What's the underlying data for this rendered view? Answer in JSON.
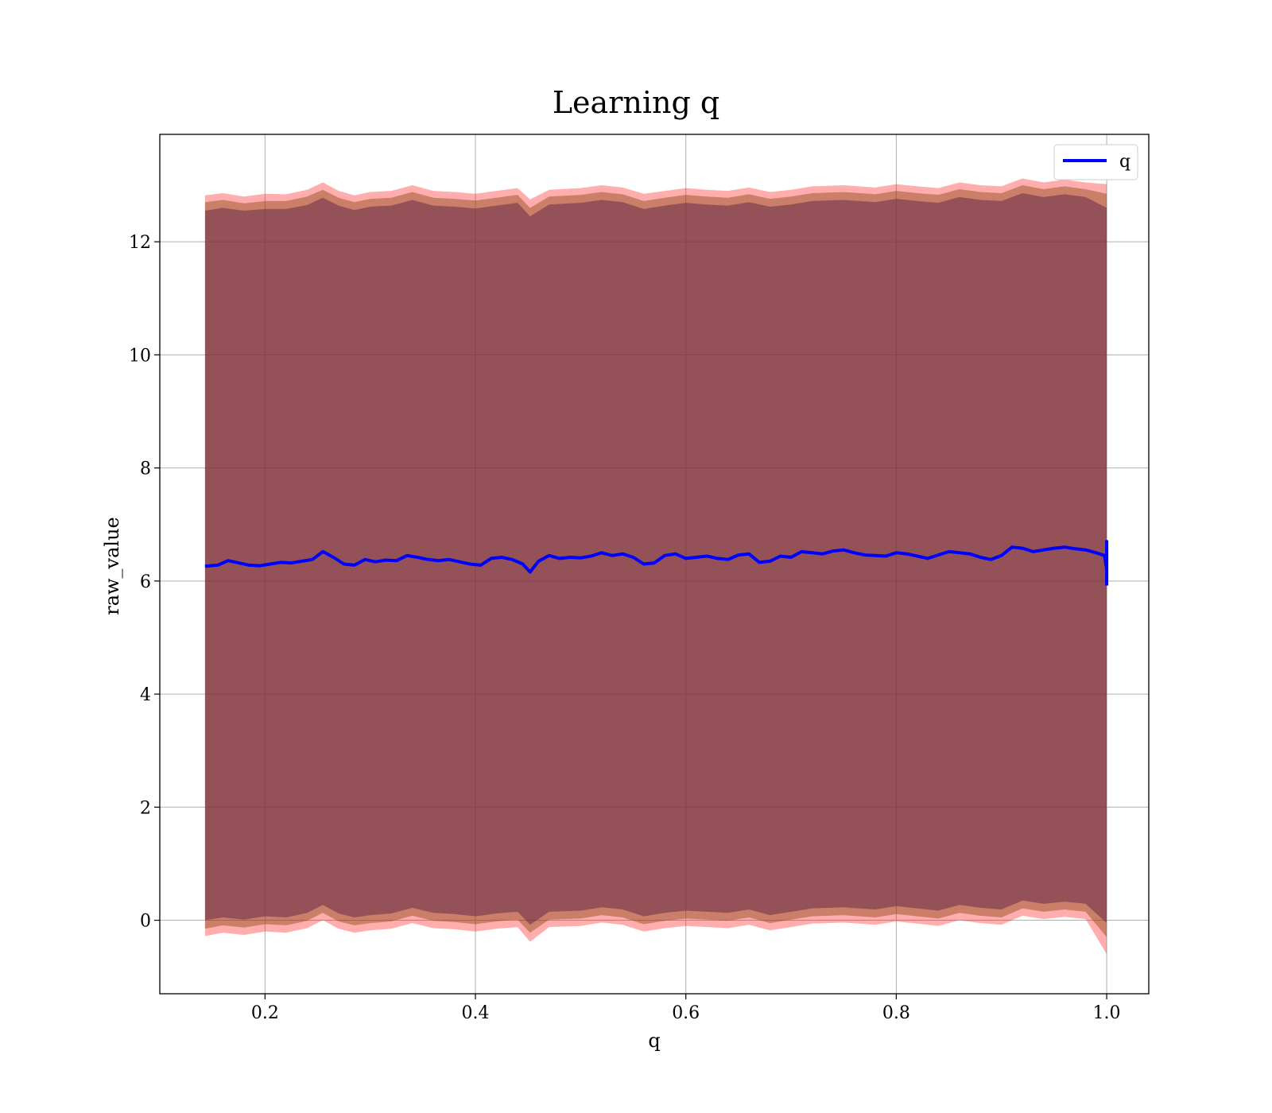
{
  "chart_data": {
    "type": "line",
    "title": "Learning q",
    "xlabel": "q",
    "ylabel": "raw_value",
    "xlim": [
      0.1,
      1.04
    ],
    "ylim": [
      -1.3,
      13.9
    ],
    "xticks": [
      0.2,
      0.4,
      0.6,
      0.8,
      1.0
    ],
    "xtick_labels": [
      "0.2",
      "0.4",
      "0.6",
      "0.8",
      "1.0"
    ],
    "yticks": [
      0,
      2,
      4,
      6,
      8,
      10,
      12
    ],
    "ytick_labels": [
      "0",
      "2",
      "4",
      "6",
      "8",
      "10",
      "12"
    ],
    "grid": true,
    "legend_position": "top-right",
    "series": [
      {
        "name": "q",
        "color": "#0000ff",
        "x": [
          0.143,
          0.155,
          0.165,
          0.175,
          0.185,
          0.195,
          0.205,
          0.215,
          0.225,
          0.235,
          0.245,
          0.255,
          0.265,
          0.275,
          0.285,
          0.295,
          0.305,
          0.315,
          0.325,
          0.335,
          0.345,
          0.355,
          0.365,
          0.375,
          0.385,
          0.395,
          0.405,
          0.415,
          0.425,
          0.435,
          0.445,
          0.452,
          0.46,
          0.47,
          0.48,
          0.49,
          0.5,
          0.51,
          0.52,
          0.53,
          0.54,
          0.55,
          0.56,
          0.57,
          0.58,
          0.59,
          0.6,
          0.61,
          0.62,
          0.63,
          0.64,
          0.65,
          0.66,
          0.67,
          0.68,
          0.69,
          0.7,
          0.71,
          0.72,
          0.73,
          0.74,
          0.75,
          0.76,
          0.77,
          0.78,
          0.79,
          0.8,
          0.81,
          0.82,
          0.83,
          0.84,
          0.85,
          0.86,
          0.87,
          0.88,
          0.89,
          0.9,
          0.91,
          0.92,
          0.93,
          0.94,
          0.95,
          0.96,
          0.97,
          0.98,
          0.99,
          0.998,
          1.0
        ],
        "y": [
          6.26,
          6.28,
          6.36,
          6.32,
          6.28,
          6.27,
          6.3,
          6.33,
          6.32,
          6.35,
          6.38,
          6.52,
          6.42,
          6.3,
          6.28,
          6.38,
          6.34,
          6.37,
          6.36,
          6.45,
          6.42,
          6.38,
          6.36,
          6.38,
          6.34,
          6.3,
          6.28,
          6.4,
          6.42,
          6.38,
          6.3,
          6.16,
          6.35,
          6.45,
          6.4,
          6.42,
          6.41,
          6.44,
          6.5,
          6.45,
          6.48,
          6.42,
          6.3,
          6.32,
          6.45,
          6.48,
          6.4,
          6.42,
          6.44,
          6.4,
          6.38,
          6.46,
          6.48,
          6.33,
          6.35,
          6.44,
          6.42,
          6.52,
          6.5,
          6.48,
          6.53,
          6.55,
          6.5,
          6.46,
          6.45,
          6.44,
          6.5,
          6.48,
          6.44,
          6.4,
          6.46,
          6.52,
          6.5,
          6.48,
          6.42,
          6.38,
          6.45,
          6.6,
          6.58,
          6.52,
          6.55,
          6.58,
          6.6,
          6.57,
          6.55,
          6.5,
          6.45,
          6.2
        ]
      }
    ],
    "bands": [
      {
        "color": "#ff0000",
        "opacity": 0.32,
        "x": [
          0.143,
          0.16,
          0.18,
          0.2,
          0.22,
          0.24,
          0.255,
          0.27,
          0.285,
          0.3,
          0.32,
          0.34,
          0.36,
          0.38,
          0.4,
          0.42,
          0.44,
          0.452,
          0.47,
          0.5,
          0.52,
          0.54,
          0.56,
          0.58,
          0.6,
          0.62,
          0.64,
          0.66,
          0.68,
          0.7,
          0.72,
          0.75,
          0.78,
          0.8,
          0.82,
          0.84,
          0.86,
          0.88,
          0.9,
          0.92,
          0.94,
          0.96,
          0.98,
          1.0
        ],
        "upper": [
          12.82,
          12.86,
          12.8,
          12.85,
          12.84,
          12.92,
          13.05,
          12.9,
          12.82,
          12.88,
          12.9,
          13.0,
          12.9,
          12.88,
          12.85,
          12.9,
          12.95,
          12.75,
          12.92,
          12.95,
          13.0,
          12.96,
          12.85,
          12.9,
          12.95,
          12.92,
          12.9,
          12.96,
          12.88,
          12.92,
          12.98,
          13.0,
          12.96,
          13.02,
          12.98,
          12.95,
          13.05,
          13.0,
          12.98,
          13.12,
          13.05,
          13.1,
          13.05,
          13.02
        ],
        "lower": [
          -0.28,
          -0.22,
          -0.26,
          -0.2,
          -0.22,
          -0.14,
          0.0,
          -0.15,
          -0.22,
          -0.18,
          -0.15,
          -0.05,
          -0.14,
          -0.16,
          -0.2,
          -0.15,
          -0.12,
          -0.38,
          -0.12,
          -0.1,
          -0.04,
          -0.08,
          -0.2,
          -0.14,
          -0.1,
          -0.12,
          -0.14,
          -0.08,
          -0.18,
          -0.12,
          -0.06,
          -0.04,
          -0.08,
          -0.02,
          -0.06,
          -0.1,
          0.0,
          -0.05,
          -0.08,
          0.08,
          0.02,
          0.06,
          0.02,
          -0.6
        ]
      },
      {
        "color": "#8b4513",
        "opacity": 0.45,
        "x": [
          0.143,
          0.16,
          0.18,
          0.2,
          0.22,
          0.24,
          0.255,
          0.27,
          0.285,
          0.3,
          0.32,
          0.34,
          0.36,
          0.38,
          0.4,
          0.42,
          0.44,
          0.452,
          0.47,
          0.5,
          0.52,
          0.54,
          0.56,
          0.58,
          0.6,
          0.62,
          0.64,
          0.66,
          0.68,
          0.7,
          0.72,
          0.75,
          0.78,
          0.8,
          0.82,
          0.84,
          0.86,
          0.88,
          0.9,
          0.92,
          0.94,
          0.96,
          0.98,
          1.0
        ],
        "upper": [
          12.7,
          12.74,
          12.68,
          12.72,
          12.72,
          12.8,
          12.92,
          12.78,
          12.7,
          12.76,
          12.78,
          12.88,
          12.78,
          12.76,
          12.73,
          12.78,
          12.83,
          12.6,
          12.8,
          12.83,
          12.88,
          12.84,
          12.72,
          12.78,
          12.83,
          12.8,
          12.78,
          12.84,
          12.76,
          12.8,
          12.86,
          12.88,
          12.84,
          12.9,
          12.86,
          12.83,
          12.93,
          12.88,
          12.86,
          13.0,
          12.93,
          12.98,
          12.93,
          12.85
        ],
        "lower": [
          -0.15,
          -0.09,
          -0.13,
          -0.07,
          -0.09,
          -0.01,
          0.13,
          -0.02,
          -0.09,
          -0.05,
          -0.02,
          0.08,
          -0.01,
          -0.03,
          -0.07,
          -0.02,
          0.01,
          -0.22,
          0.01,
          0.03,
          0.09,
          0.05,
          -0.07,
          -0.01,
          0.03,
          0.01,
          -0.01,
          0.05,
          -0.05,
          0.01,
          0.07,
          0.09,
          0.05,
          0.11,
          0.07,
          0.03,
          0.13,
          0.08,
          0.05,
          0.21,
          0.15,
          0.19,
          0.15,
          -0.3
        ]
      },
      {
        "color": "#6a2c4a",
        "opacity": 0.55,
        "x": [
          0.143,
          0.16,
          0.18,
          0.2,
          0.22,
          0.24,
          0.255,
          0.27,
          0.285,
          0.3,
          0.32,
          0.34,
          0.36,
          0.38,
          0.4,
          0.42,
          0.44,
          0.452,
          0.47,
          0.5,
          0.52,
          0.54,
          0.56,
          0.58,
          0.6,
          0.62,
          0.64,
          0.66,
          0.68,
          0.7,
          0.72,
          0.75,
          0.78,
          0.8,
          0.82,
          0.84,
          0.86,
          0.88,
          0.9,
          0.92,
          0.94,
          0.96,
          0.98,
          1.0
        ],
        "upper": [
          12.55,
          12.6,
          12.55,
          12.58,
          12.58,
          12.65,
          12.78,
          12.64,
          12.56,
          12.62,
          12.64,
          12.74,
          12.64,
          12.62,
          12.59,
          12.64,
          12.69,
          12.45,
          12.66,
          12.69,
          12.74,
          12.7,
          12.58,
          12.64,
          12.69,
          12.66,
          12.64,
          12.7,
          12.62,
          12.66,
          12.72,
          12.74,
          12.7,
          12.76,
          12.72,
          12.69,
          12.79,
          12.74,
          12.72,
          12.86,
          12.79,
          12.84,
          12.79,
          12.6
        ],
        "lower": [
          0.0,
          0.05,
          0.01,
          0.07,
          0.05,
          0.13,
          0.27,
          0.12,
          0.05,
          0.09,
          0.12,
          0.22,
          0.13,
          0.11,
          0.07,
          0.12,
          0.15,
          -0.08,
          0.15,
          0.17,
          0.23,
          0.19,
          0.07,
          0.13,
          0.17,
          0.15,
          0.13,
          0.19,
          0.09,
          0.15,
          0.21,
          0.23,
          0.19,
          0.25,
          0.21,
          0.17,
          0.27,
          0.22,
          0.19,
          0.35,
          0.29,
          0.33,
          0.29,
          -0.05
        ]
      }
    ]
  }
}
